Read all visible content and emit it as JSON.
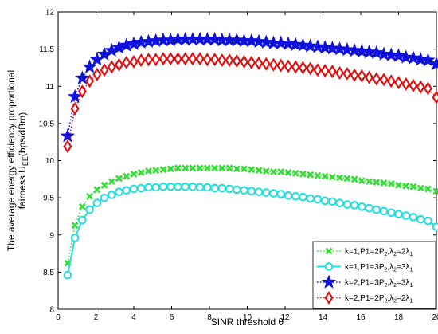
{
  "chart_data": {
    "type": "line",
    "xlabel": "SINR threshold θ",
    "ylabel_line1": "The average energy efficiency proportional",
    "ylabel_line2_prefix": "fairness U",
    "ylabel_line2_sub": "EE",
    "ylabel_line2_suffix": "(bps/dBm)",
    "xlim": [
      0,
      20
    ],
    "ylim": [
      8,
      12
    ],
    "xticks": [
      0,
      2,
      4,
      6,
      8,
      10,
      12,
      14,
      16,
      18,
      20
    ],
    "yticks": [
      8,
      8.5,
      9,
      9.5,
      10,
      10.5,
      11,
      11.5,
      12
    ],
    "grid": false,
    "legend_position": "bottom-right",
    "x": [
      0.5,
      0.889,
      1.278,
      1.667,
      2.056,
      2.444,
      2.833,
      3.222,
      3.611,
      4.0,
      4.389,
      4.778,
      5.167,
      5.556,
      5.944,
      6.333,
      6.722,
      7.111,
      7.5,
      7.889,
      8.278,
      8.667,
      9.056,
      9.444,
      9.833,
      10.222,
      10.611,
      11.0,
      11.389,
      11.778,
      12.167,
      12.556,
      12.944,
      13.333,
      13.722,
      14.111,
      14.5,
      14.889,
      15.278,
      15.667,
      16.056,
      16.444,
      16.833,
      17.222,
      17.611,
      18.0,
      18.389,
      18.778,
      19.167,
      19.556,
      20.0
    ],
    "series": [
      {
        "name": "k=1,P1=2P2,λ2=2λ1",
        "legend_html": [
          "k=1,P1=2P",
          "2",
          ",λ",
          "2",
          "=2λ",
          "1"
        ],
        "color": "#33dd33",
        "marker": "x",
        "linestyle": "dotted",
        "values": [
          8.62,
          9.13,
          9.38,
          9.52,
          9.61,
          9.67,
          9.72,
          9.76,
          9.79,
          9.82,
          9.84,
          9.86,
          9.87,
          9.88,
          9.89,
          9.9,
          9.9,
          9.9,
          9.9,
          9.9,
          9.9,
          9.9,
          9.9,
          9.89,
          9.89,
          9.88,
          9.87,
          9.86,
          9.85,
          9.85,
          9.84,
          9.83,
          9.82,
          9.81,
          9.8,
          9.79,
          9.78,
          9.77,
          9.76,
          9.75,
          9.73,
          9.72,
          9.71,
          9.7,
          9.69,
          9.67,
          9.66,
          9.65,
          9.63,
          9.62,
          9.59
        ]
      },
      {
        "name": "k=1,P1=3P2,λ2=3λ1",
        "legend_html": [
          "k=1,P1=3P",
          "2",
          ",λ",
          "2",
          "=3λ",
          "1"
        ],
        "color": "#22dddd",
        "marker": "circle",
        "linestyle": "solid",
        "values": [
          8.46,
          8.96,
          9.2,
          9.34,
          9.43,
          9.5,
          9.54,
          9.58,
          9.6,
          9.62,
          9.63,
          9.64,
          9.64,
          9.65,
          9.65,
          9.65,
          9.65,
          9.65,
          9.64,
          9.64,
          9.63,
          9.63,
          9.62,
          9.61,
          9.6,
          9.59,
          9.58,
          9.57,
          9.56,
          9.55,
          9.53,
          9.52,
          9.51,
          9.49,
          9.48,
          9.46,
          9.45,
          9.43,
          9.41,
          9.4,
          9.38,
          9.36,
          9.34,
          9.32,
          9.3,
          9.28,
          9.26,
          9.24,
          9.21,
          9.19,
          9.11
        ]
      },
      {
        "name": "k=2,P1=3P2,λ2=3λ1",
        "legend_html": [
          "k=2,P1=3P",
          "2",
          ",λ",
          "2",
          "=3λ",
          "1"
        ],
        "color": "#1111dd",
        "marker": "star",
        "linestyle": "dotted",
        "values": [
          10.33,
          10.86,
          11.11,
          11.26,
          11.36,
          11.43,
          11.48,
          11.52,
          11.55,
          11.57,
          11.59,
          11.6,
          11.61,
          11.62,
          11.62,
          11.63,
          11.63,
          11.63,
          11.63,
          11.63,
          11.63,
          11.62,
          11.62,
          11.62,
          11.61,
          11.61,
          11.6,
          11.59,
          11.58,
          11.58,
          11.57,
          11.56,
          11.55,
          11.54,
          11.53,
          11.52,
          11.51,
          11.5,
          11.49,
          11.48,
          11.47,
          11.46,
          11.45,
          11.43,
          11.42,
          11.41,
          11.39,
          11.38,
          11.36,
          11.35,
          11.3
        ]
      },
      {
        "name": "k=2,P1=2P2,λ2=2λ1",
        "legend_html": [
          "k=2,P1=2P",
          "2",
          ",λ",
          "2",
          "=2λ",
          "1"
        ],
        "color": "#dd1111",
        "marker": "diamond",
        "linestyle": "dotted",
        "values": [
          10.19,
          10.7,
          10.93,
          11.07,
          11.16,
          11.22,
          11.26,
          11.29,
          11.32,
          11.33,
          11.35,
          11.36,
          11.36,
          11.37,
          11.37,
          11.37,
          11.37,
          11.37,
          11.37,
          11.36,
          11.36,
          11.35,
          11.35,
          11.34,
          11.33,
          11.32,
          11.31,
          11.3,
          11.29,
          11.28,
          11.27,
          11.26,
          11.25,
          11.24,
          11.22,
          11.21,
          11.2,
          11.18,
          11.17,
          11.15,
          11.14,
          11.12,
          11.1,
          11.09,
          11.07,
          11.05,
          11.03,
          11.01,
          10.99,
          10.97,
          10.85
        ]
      }
    ]
  }
}
